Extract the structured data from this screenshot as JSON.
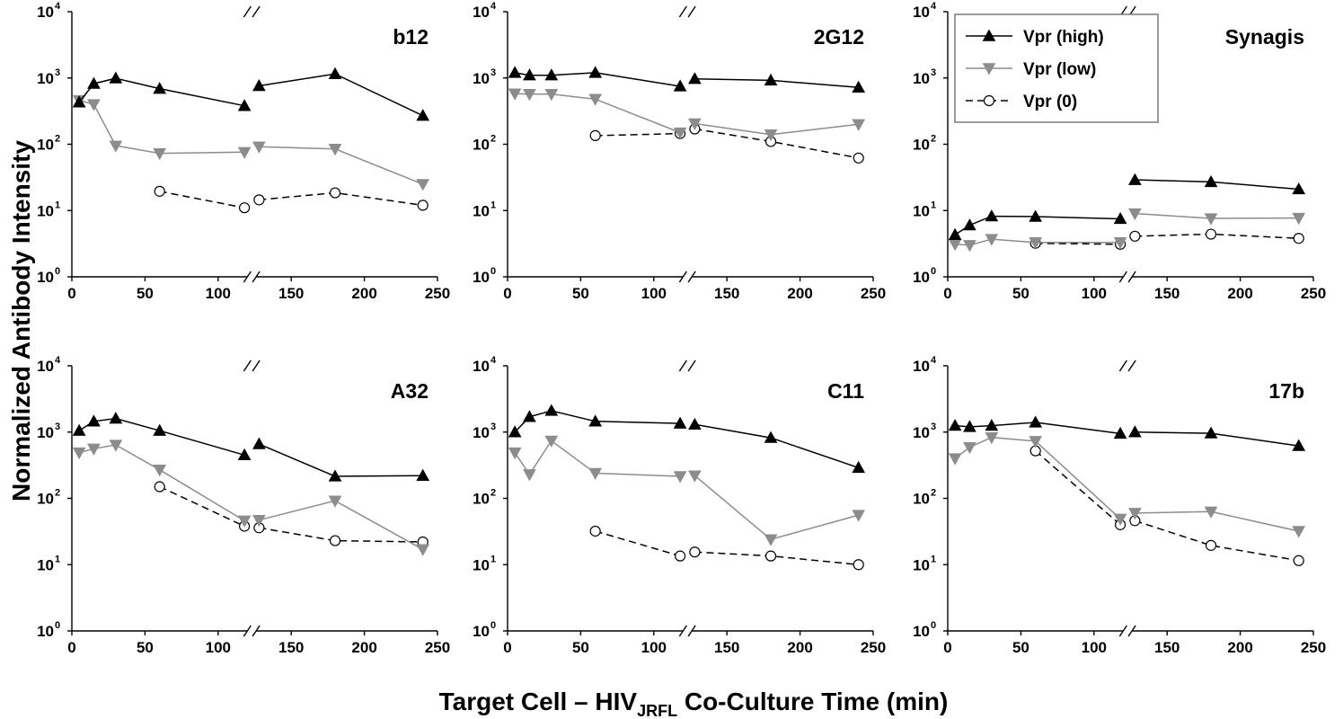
{
  "chart_data": {
    "type": "line",
    "ylabel": "Normalized Antibody Intensity",
    "xlabel": {
      "main": "Target Cell – HIV",
      "subscript": "JRFL",
      "tail": " Co-Culture Time (min)"
    },
    "x_scale": "linear with axis break between 120 and 125",
    "y_scale": "log",
    "xlim": [
      0,
      250
    ],
    "ylim": [
      1,
      10000
    ],
    "x_ticks": [
      "0",
      "50",
      "100",
      "150",
      "200",
      "250"
    ],
    "y_ticks": [
      {
        "base": "10",
        "exp": "0"
      },
      {
        "base": "10",
        "exp": "1"
      },
      {
        "base": "10",
        "exp": "2"
      },
      {
        "base": "10",
        "exp": "3"
      },
      {
        "base": "10",
        "exp": "4"
      }
    ],
    "legend": {
      "placement": "top-left of Synagis panel",
      "entries": [
        {
          "label": "Vpr (high)",
          "series": "high",
          "marker": "triangle-up",
          "color": "#000000",
          "dash": "solid"
        },
        {
          "label": "Vpr (low)",
          "series": "low",
          "marker": "triangle-down",
          "color": "#8c8c8c",
          "dash": "solid"
        },
        {
          "label": "Vpr (0)",
          "series": "zero",
          "marker": "circle-open",
          "color": "#000000",
          "dash": "dashed"
        }
      ]
    },
    "panels": [
      {
        "title": "b12",
        "series": {
          "high": [
            [
              5,
              430
            ],
            [
              15,
              820
            ],
            [
              30,
              990
            ],
            [
              60,
              690
            ],
            [
              118,
              380
            ],
            [
              128,
              760
            ],
            [
              180,
              1150
            ],
            [
              240,
              270
            ]
          ],
          "low": [
            [
              5,
              460
            ],
            [
              15,
              400
            ],
            [
              30,
              95
            ],
            [
              60,
              73
            ],
            [
              118,
              76
            ],
            [
              128,
              92
            ],
            [
              180,
              85
            ],
            [
              240,
              25
            ]
          ],
          "zero": [
            [
              60,
              19.5
            ],
            [
              118,
              11
            ],
            [
              128,
              14.5
            ],
            [
              180,
              18.5
            ],
            [
              240,
              12
            ]
          ]
        }
      },
      {
        "title": "2G12",
        "series": {
          "high": [
            [
              5,
              1200
            ],
            [
              15,
              1100
            ],
            [
              30,
              1100
            ],
            [
              60,
              1200
            ],
            [
              118,
              750
            ],
            [
              128,
              970
            ],
            [
              180,
              920
            ],
            [
              240,
              720
            ]
          ],
          "low": [
            [
              5,
              580
            ],
            [
              15,
              570
            ],
            [
              30,
              570
            ],
            [
              60,
              480
            ],
            [
              118,
              150
            ],
            [
              128,
              205
            ],
            [
              180,
              140
            ],
            [
              240,
              200
            ]
          ],
          "zero": [
            [
              60,
              135
            ],
            [
              118,
              145
            ],
            [
              128,
              170
            ],
            [
              180,
              110
            ],
            [
              240,
              62
            ]
          ]
        }
      },
      {
        "title": "Synagis",
        "series": {
          "high": [
            [
              5,
              4.3
            ],
            [
              15,
              6
            ],
            [
              30,
              8.2
            ],
            [
              60,
              8.1
            ],
            [
              118,
              7.5
            ],
            [
              128,
              29
            ],
            [
              180,
              27
            ],
            [
              240,
              21
            ]
          ],
          "low": [
            [
              5,
              3.1
            ],
            [
              15,
              3.0
            ],
            [
              30,
              3.7
            ],
            [
              60,
              3.3
            ],
            [
              118,
              3.3
            ],
            [
              128,
              9.0
            ],
            [
              180,
              7.6
            ],
            [
              240,
              7.7
            ]
          ],
          "zero": [
            [
              60,
              3.2
            ],
            [
              118,
              3.1
            ],
            [
              128,
              4.1
            ],
            [
              180,
              4.4
            ],
            [
              240,
              3.8
            ]
          ]
        }
      },
      {
        "title": "A32",
        "series": {
          "high": [
            [
              5,
              1050
            ],
            [
              15,
              1450
            ],
            [
              30,
              1600
            ],
            [
              60,
              1050
            ],
            [
              118,
              450
            ],
            [
              128,
              660
            ],
            [
              180,
              215
            ],
            [
              240,
              220
            ]
          ],
          "low": [
            [
              5,
              490
            ],
            [
              15,
              560
            ],
            [
              30,
              640
            ],
            [
              60,
              270
            ],
            [
              118,
              46
            ],
            [
              128,
              47
            ],
            [
              180,
              92
            ],
            [
              240,
              17
            ]
          ],
          "zero": [
            [
              60,
              150
            ],
            [
              118,
              38
            ],
            [
              128,
              36
            ],
            [
              180,
              23
            ],
            [
              240,
              22
            ]
          ]
        }
      },
      {
        "title": "C11",
        "series": {
          "high": [
            [
              5,
              1000
            ],
            [
              15,
              1700
            ],
            [
              30,
              2100
            ],
            [
              60,
              1450
            ],
            [
              118,
              1350
            ],
            [
              128,
              1300
            ],
            [
              180,
              820
            ],
            [
              240,
              290
            ]
          ],
          "low": [
            [
              5,
              490
            ],
            [
              15,
              230
            ],
            [
              30,
              740
            ],
            [
              60,
              240
            ],
            [
              118,
              215
            ],
            [
              128,
              220
            ],
            [
              180,
              24
            ],
            [
              240,
              56
            ]
          ],
          "zero": [
            [
              60,
              32
            ],
            [
              118,
              13.5
            ],
            [
              128,
              15.5
            ],
            [
              180,
              13.5
            ],
            [
              240,
              10
            ]
          ]
        }
      },
      {
        "title": "17b",
        "series": {
          "high": [
            [
              5,
              1250
            ],
            [
              15,
              1200
            ],
            [
              30,
              1250
            ],
            [
              60,
              1400
            ],
            [
              118,
              950
            ],
            [
              128,
              1000
            ],
            [
              180,
              960
            ],
            [
              240,
              620
            ]
          ],
          "low": [
            [
              5,
              400
            ],
            [
              15,
              590
            ],
            [
              30,
              830
            ],
            [
              60,
              730
            ],
            [
              118,
              49
            ],
            [
              128,
              60
            ],
            [
              180,
              63
            ],
            [
              240,
              32
            ]
          ],
          "zero": [
            [
              60,
              520
            ],
            [
              118,
              40
            ],
            [
              128,
              46
            ],
            [
              180,
              19.5
            ],
            [
              240,
              11.5
            ]
          ]
        }
      }
    ]
  }
}
